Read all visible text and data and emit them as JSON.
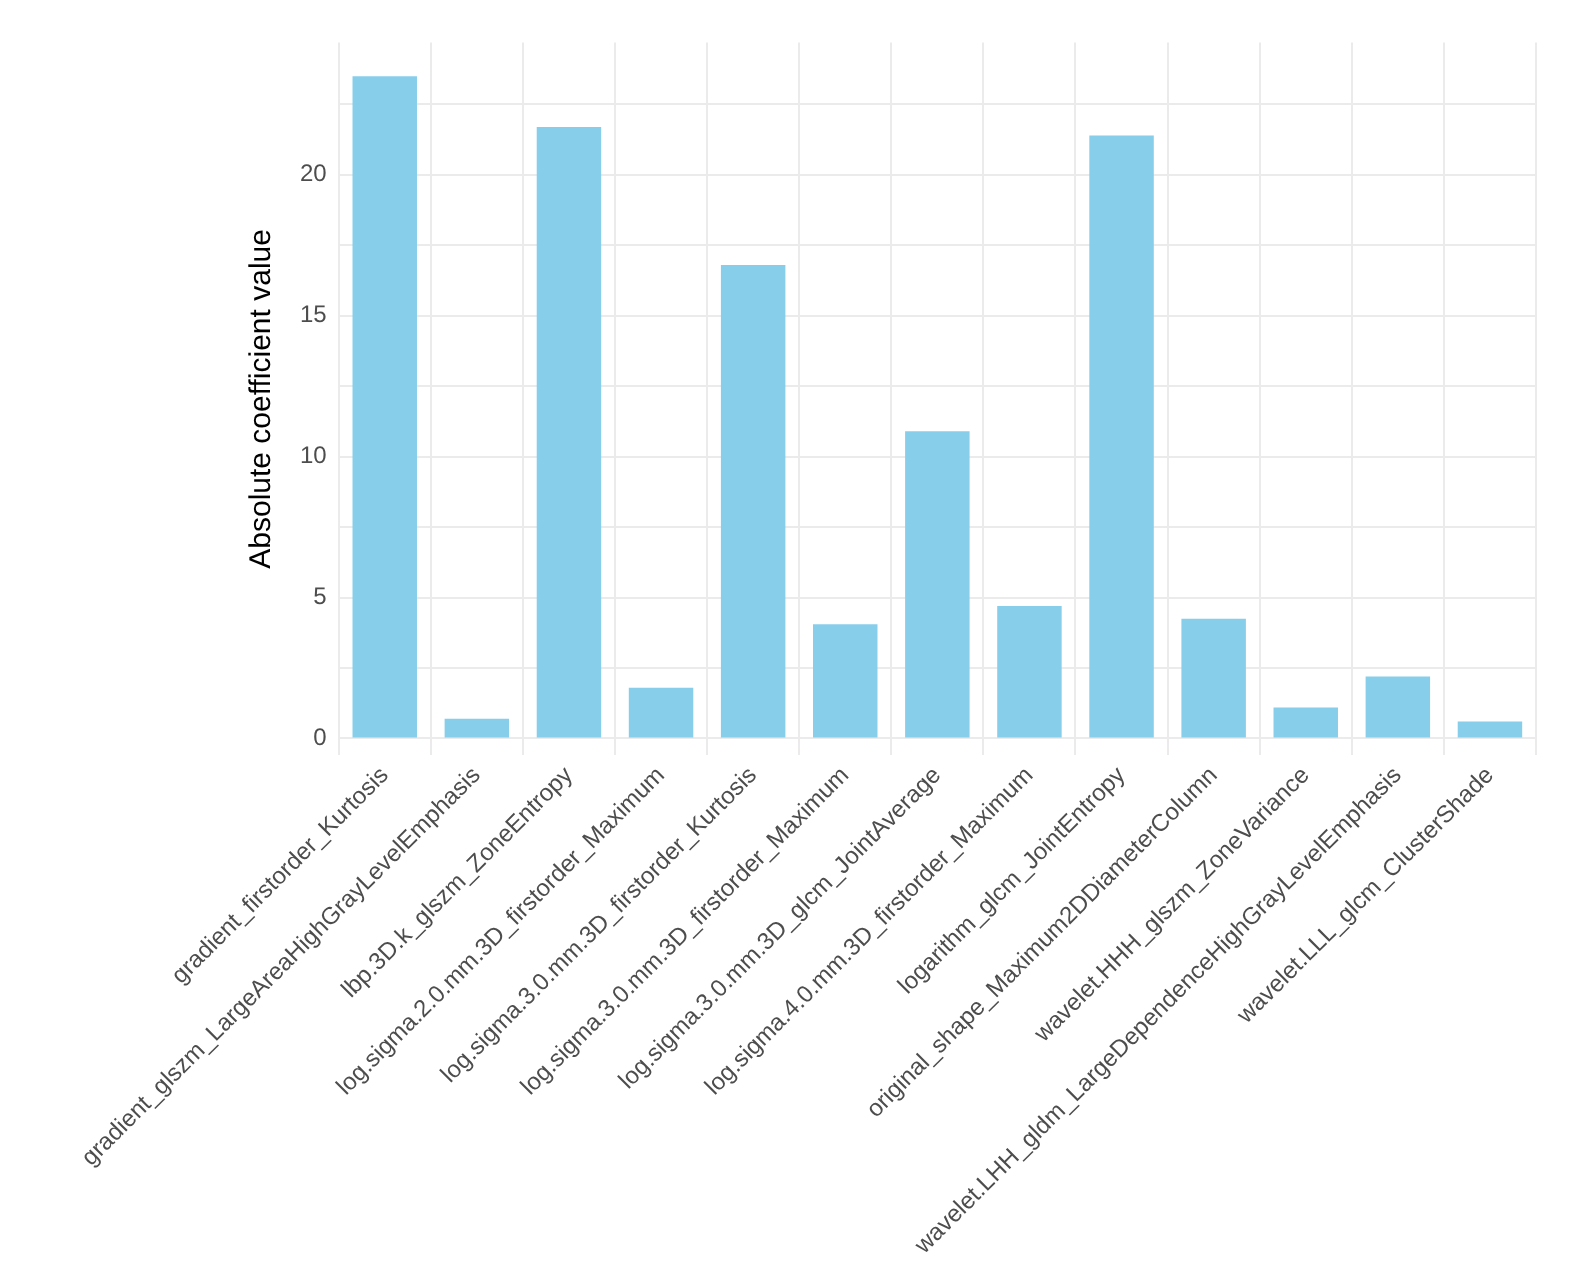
{
  "chart_data": {
    "type": "bar",
    "ylabel": "Absolute coefficient value",
    "categories": [
      "gradient_firstorder_Kurtosis",
      "gradient_glszm_LargeAreaHighGrayLevelEmphasis",
      "lbp.3D.k_glszm_ZoneEntropy",
      "log.sigma.2.0.mm.3D_firstorder_Maximum",
      "log.sigma.3.0.mm.3D_firstorder_Kurtosis",
      "log.sigma.3.0.mm.3D_firstorder_Maximum",
      "log.sigma.3.0.mm.3D_glcm_JointAverage",
      "log.sigma.4.0.mm.3D_firstorder_Maximum",
      "logarithm_glcm_JointEntropy",
      "original_shape_Maximum2DDiameterColumn",
      "wavelet.HHH_glszm_ZoneVariance",
      "wavelet.LHH_gldm_LargeDependenceHighGrayLevelEmphasis",
      "wavelet.LLL_glcm_ClusterShade"
    ],
    "values": [
      23.5,
      0.7,
      21.7,
      1.8,
      16.8,
      4.05,
      10.9,
      4.7,
      21.4,
      4.25,
      1.1,
      2.2,
      0.6
    ],
    "color": "#87ceeb",
    "ylim": [
      -0.6,
      24.7
    ],
    "yticks": [
      0,
      {
        "value": 2.5,
        "label": null
      },
      5,
      {
        "value": 7.5,
        "label": null
      },
      10,
      {
        "value": 12.5,
        "label": null
      },
      15,
      {
        "value": 17.5,
        "label": null
      },
      20,
      {
        "value": 22.5,
        "label": null
      }
    ],
    "grid": true
  }
}
